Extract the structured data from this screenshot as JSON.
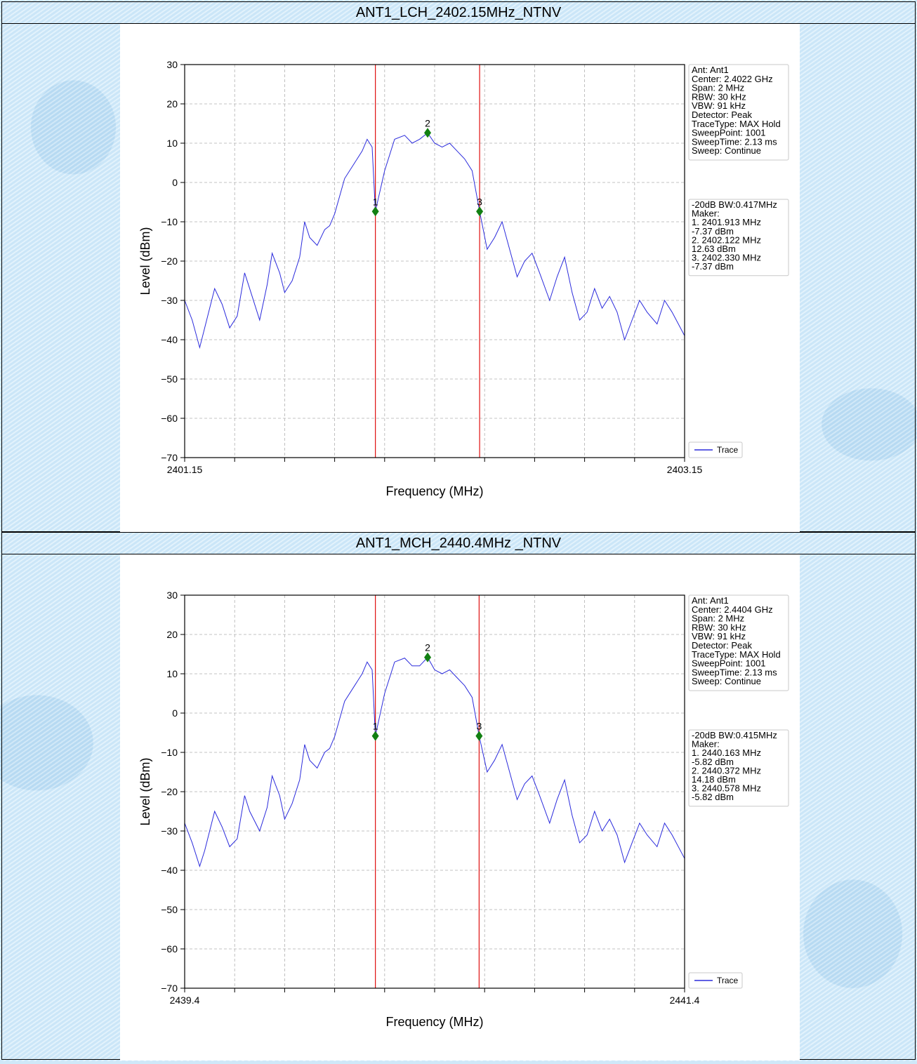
{
  "panels": [
    {
      "title": "ANT1_LCH_2402.15MHz_NTNV",
      "info_lines": [
        "Ant: Ant1",
        "Center: 2.4022 GHz",
        "Span: 2 MHz",
        "RBW: 30 kHz",
        "VBW: 91 kHz",
        "Detector: Peak",
        "TraceType: MAX Hold",
        "SweepPoint: 1001",
        "SweepTime: 2.13 ms",
        "Sweep: Continue"
      ],
      "marker_lines": [
        "-20dB BW:0.417MHz",
        "Maker:",
        "1. 2401.913 MHz",
        "    -7.37 dBm",
        "2. 2402.122 MHz",
        "    12.63 dBm",
        "3. 2402.330 MHz",
        "    -7.37 dBm"
      ],
      "legend": "Trace"
    },
    {
      "title": "ANT1_MCH_2440.4MHz _NTNV",
      "info_lines": [
        "Ant: Ant1",
        "Center: 2.4404 GHz",
        "Span: 2 MHz",
        "RBW: 30 kHz",
        "VBW: 91 kHz",
        "Detector: Peak",
        "TraceType: MAX Hold",
        "SweepPoint: 1001",
        "SweepTime: 2.13 ms",
        "Sweep: Continue"
      ],
      "marker_lines": [
        "-20dB BW:0.415MHz",
        "Maker:",
        "1. 2440.163 MHz",
        "    -5.82 dBm",
        "2. 2440.372 MHz",
        "    14.18 dBm",
        "3. 2440.578 MHz",
        "    -5.82 dBm"
      ],
      "legend": "Trace"
    }
  ],
  "colors": {
    "trace": "#2b2bdc",
    "marker": "#128012",
    "bw_line": "#e01010",
    "grid": "#b0b0b0"
  },
  "chart_data": [
    {
      "type": "line",
      "xlabel": "Frequency (MHz)",
      "ylabel": "Level (dBm)",
      "xlim": [
        2401.15,
        2403.15
      ],
      "ylim": [
        -70,
        30
      ],
      "xtick_labels": [
        "2401.15",
        "2403.15"
      ],
      "yticks": [
        30,
        20,
        10,
        0,
        -10,
        -20,
        -30,
        -40,
        -50,
        -60,
        -70
      ],
      "grid": true,
      "legend_position": "lower-right",
      "series": [
        {
          "name": "Trace",
          "x": [
            2401.15,
            2401.18,
            2401.21,
            2401.23,
            2401.27,
            2401.3,
            2401.33,
            2401.36,
            2401.39,
            2401.41,
            2401.45,
            2401.48,
            2401.5,
            2401.53,
            2401.55,
            2401.58,
            2401.61,
            2401.63,
            2401.65,
            2401.68,
            2401.71,
            2401.73,
            2401.75,
            2401.79,
            2401.83,
            2401.86,
            2401.88,
            2401.9,
            2401.913,
            2401.95,
            2401.99,
            2402.03,
            2402.06,
            2402.09,
            2402.122,
            2402.15,
            2402.18,
            2402.21,
            2402.24,
            2402.27,
            2402.3,
            2402.33,
            2402.36,
            2402.39,
            2402.42,
            2402.45,
            2402.48,
            2402.51,
            2402.54,
            2402.57,
            2402.61,
            2402.64,
            2402.67,
            2402.7,
            2402.73,
            2402.76,
            2402.79,
            2402.82,
            2402.85,
            2402.88,
            2402.91,
            2402.94,
            2402.97,
            2403.0,
            2403.04,
            2403.07,
            2403.1,
            2403.15
          ],
          "y": [
            -30,
            -35,
            -42,
            -37,
            -27,
            -31,
            -37,
            -34,
            -23,
            -27,
            -35,
            -26,
            -18,
            -23,
            -28,
            -25,
            -19,
            -10,
            -14,
            -16,
            -12,
            -11,
            -8,
            1,
            5,
            8,
            11,
            9,
            -7.37,
            3,
            11,
            12,
            10,
            11,
            12.63,
            10,
            9,
            10,
            8,
            6,
            3,
            -7.37,
            -17,
            -14,
            -10,
            -17,
            -24,
            -20,
            -18,
            -23,
            -30,
            -24,
            -19,
            -28,
            -35,
            -33,
            -27,
            -32,
            -29,
            -33,
            -40,
            -35,
            -30,
            -33,
            -36,
            -30,
            -33,
            -39
          ]
        }
      ],
      "markers": [
        {
          "label": "1",
          "x": 2401.913,
          "y": -7.37
        },
        {
          "label": "2",
          "x": 2402.122,
          "y": 12.63
        },
        {
          "label": "3",
          "x": 2402.33,
          "y": -7.37
        }
      ],
      "vlines": [
        2401.913,
        2402.33
      ]
    },
    {
      "type": "line",
      "xlabel": "Frequency (MHz)",
      "ylabel": "Level (dBm)",
      "xlim": [
        2439.4,
        2441.4
      ],
      "ylim": [
        -70,
        30
      ],
      "xtick_labels": [
        "2439.4",
        "2441.4"
      ],
      "yticks": [
        30,
        20,
        10,
        0,
        -10,
        -20,
        -30,
        -40,
        -50,
        -60,
        -70
      ],
      "grid": true,
      "legend_position": "lower-right",
      "series": [
        {
          "name": "Trace",
          "x": [
            2439.4,
            2439.43,
            2439.46,
            2439.48,
            2439.52,
            2439.55,
            2439.58,
            2439.61,
            2439.64,
            2439.66,
            2439.7,
            2439.73,
            2439.75,
            2439.78,
            2439.8,
            2439.83,
            2439.86,
            2439.88,
            2439.9,
            2439.93,
            2439.96,
            2439.98,
            2440.0,
            2440.04,
            2440.08,
            2440.11,
            2440.13,
            2440.15,
            2440.163,
            2440.2,
            2440.24,
            2440.28,
            2440.31,
            2440.34,
            2440.372,
            2440.4,
            2440.43,
            2440.46,
            2440.49,
            2440.52,
            2440.55,
            2440.578,
            2440.61,
            2440.64,
            2440.67,
            2440.7,
            2440.73,
            2440.76,
            2440.79,
            2440.82,
            2440.86,
            2440.89,
            2440.92,
            2440.95,
            2440.98,
            2441.01,
            2441.04,
            2441.07,
            2441.1,
            2441.13,
            2441.16,
            2441.19,
            2441.22,
            2441.25,
            2441.29,
            2441.32,
            2441.35,
            2441.4
          ],
          "y": [
            -28,
            -33,
            -39,
            -35,
            -25,
            -29,
            -34,
            -32,
            -21,
            -25,
            -30,
            -24,
            -16,
            -21,
            -27,
            -23,
            -17,
            -8,
            -12,
            -14,
            -10,
            -9,
            -6,
            3,
            7,
            10,
            13,
            11,
            -5.82,
            5,
            13,
            14,
            12,
            12,
            14.18,
            11,
            10,
            11,
            9,
            7,
            4,
            -5.82,
            -15,
            -12,
            -8,
            -15,
            -22,
            -18,
            -16,
            -21,
            -28,
            -22,
            -17,
            -26,
            -33,
            -31,
            -25,
            -30,
            -27,
            -31,
            -38,
            -33,
            -28,
            -31,
            -34,
            -28,
            -31,
            -37
          ]
        }
      ],
      "markers": [
        {
          "label": "1",
          "x": 2440.163,
          "y": -5.82
        },
        {
          "label": "2",
          "x": 2440.372,
          "y": 14.18
        },
        {
          "label": "3",
          "x": 2440.578,
          "y": -5.82
        }
      ],
      "vlines": [
        2440.163,
        2440.578
      ]
    }
  ]
}
